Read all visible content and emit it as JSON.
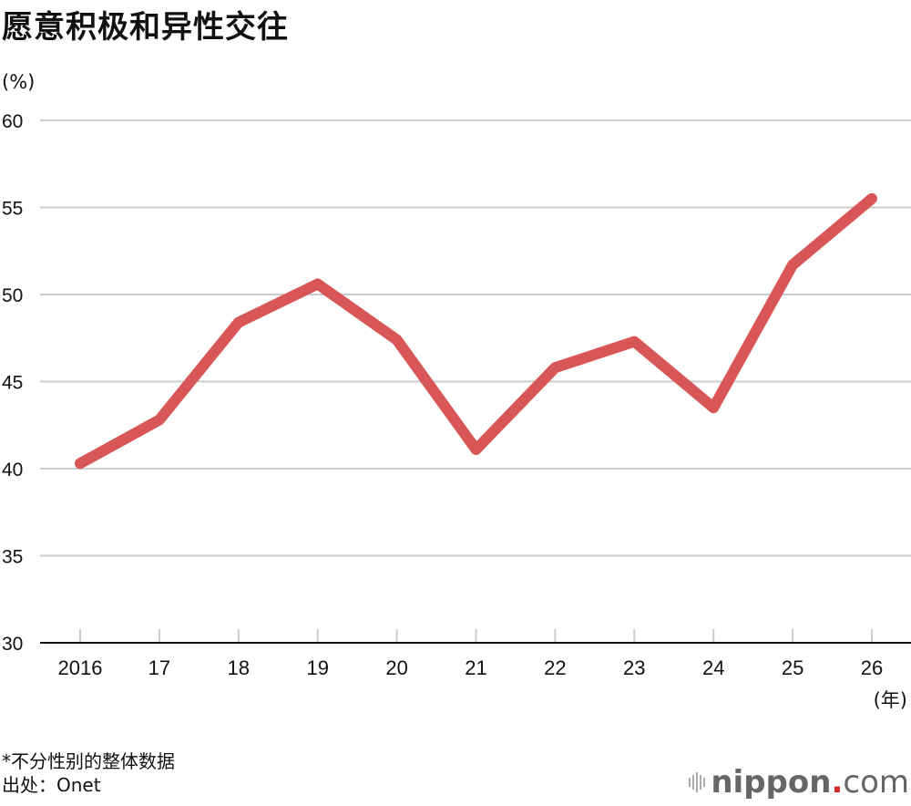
{
  "title": "愿意积极和异性交往",
  "y_unit": "(%)",
  "x_unit": "(年)",
  "notes": {
    "line1": "*不分性别的整体数据",
    "line2": "出处：Onet"
  },
  "logo": {
    "brand": "nippon",
    "dot": ".",
    "tld": "com"
  },
  "colors": {
    "line": "#d95657",
    "grid": "#cccccc",
    "axis": "#111111"
  },
  "chart_data": {
    "type": "line",
    "title": "愿意积极和异性交往",
    "xlabel": "(年)",
    "ylabel": "(%)",
    "categories": [
      "2016",
      "17",
      "18",
      "19",
      "20",
      "21",
      "22",
      "23",
      "24",
      "25",
      "26"
    ],
    "series": [
      {
        "name": "愿意积极和异性交往",
        "values": [
          40.3,
          42.8,
          48.4,
          50.6,
          47.4,
          41.1,
          45.8,
          47.3,
          43.5,
          51.7,
          55.5
        ]
      }
    ],
    "ylim": [
      30,
      60
    ],
    "yticks": [
      30,
      35,
      40,
      45,
      50,
      55,
      60
    ],
    "grid": true,
    "legend": "none"
  }
}
